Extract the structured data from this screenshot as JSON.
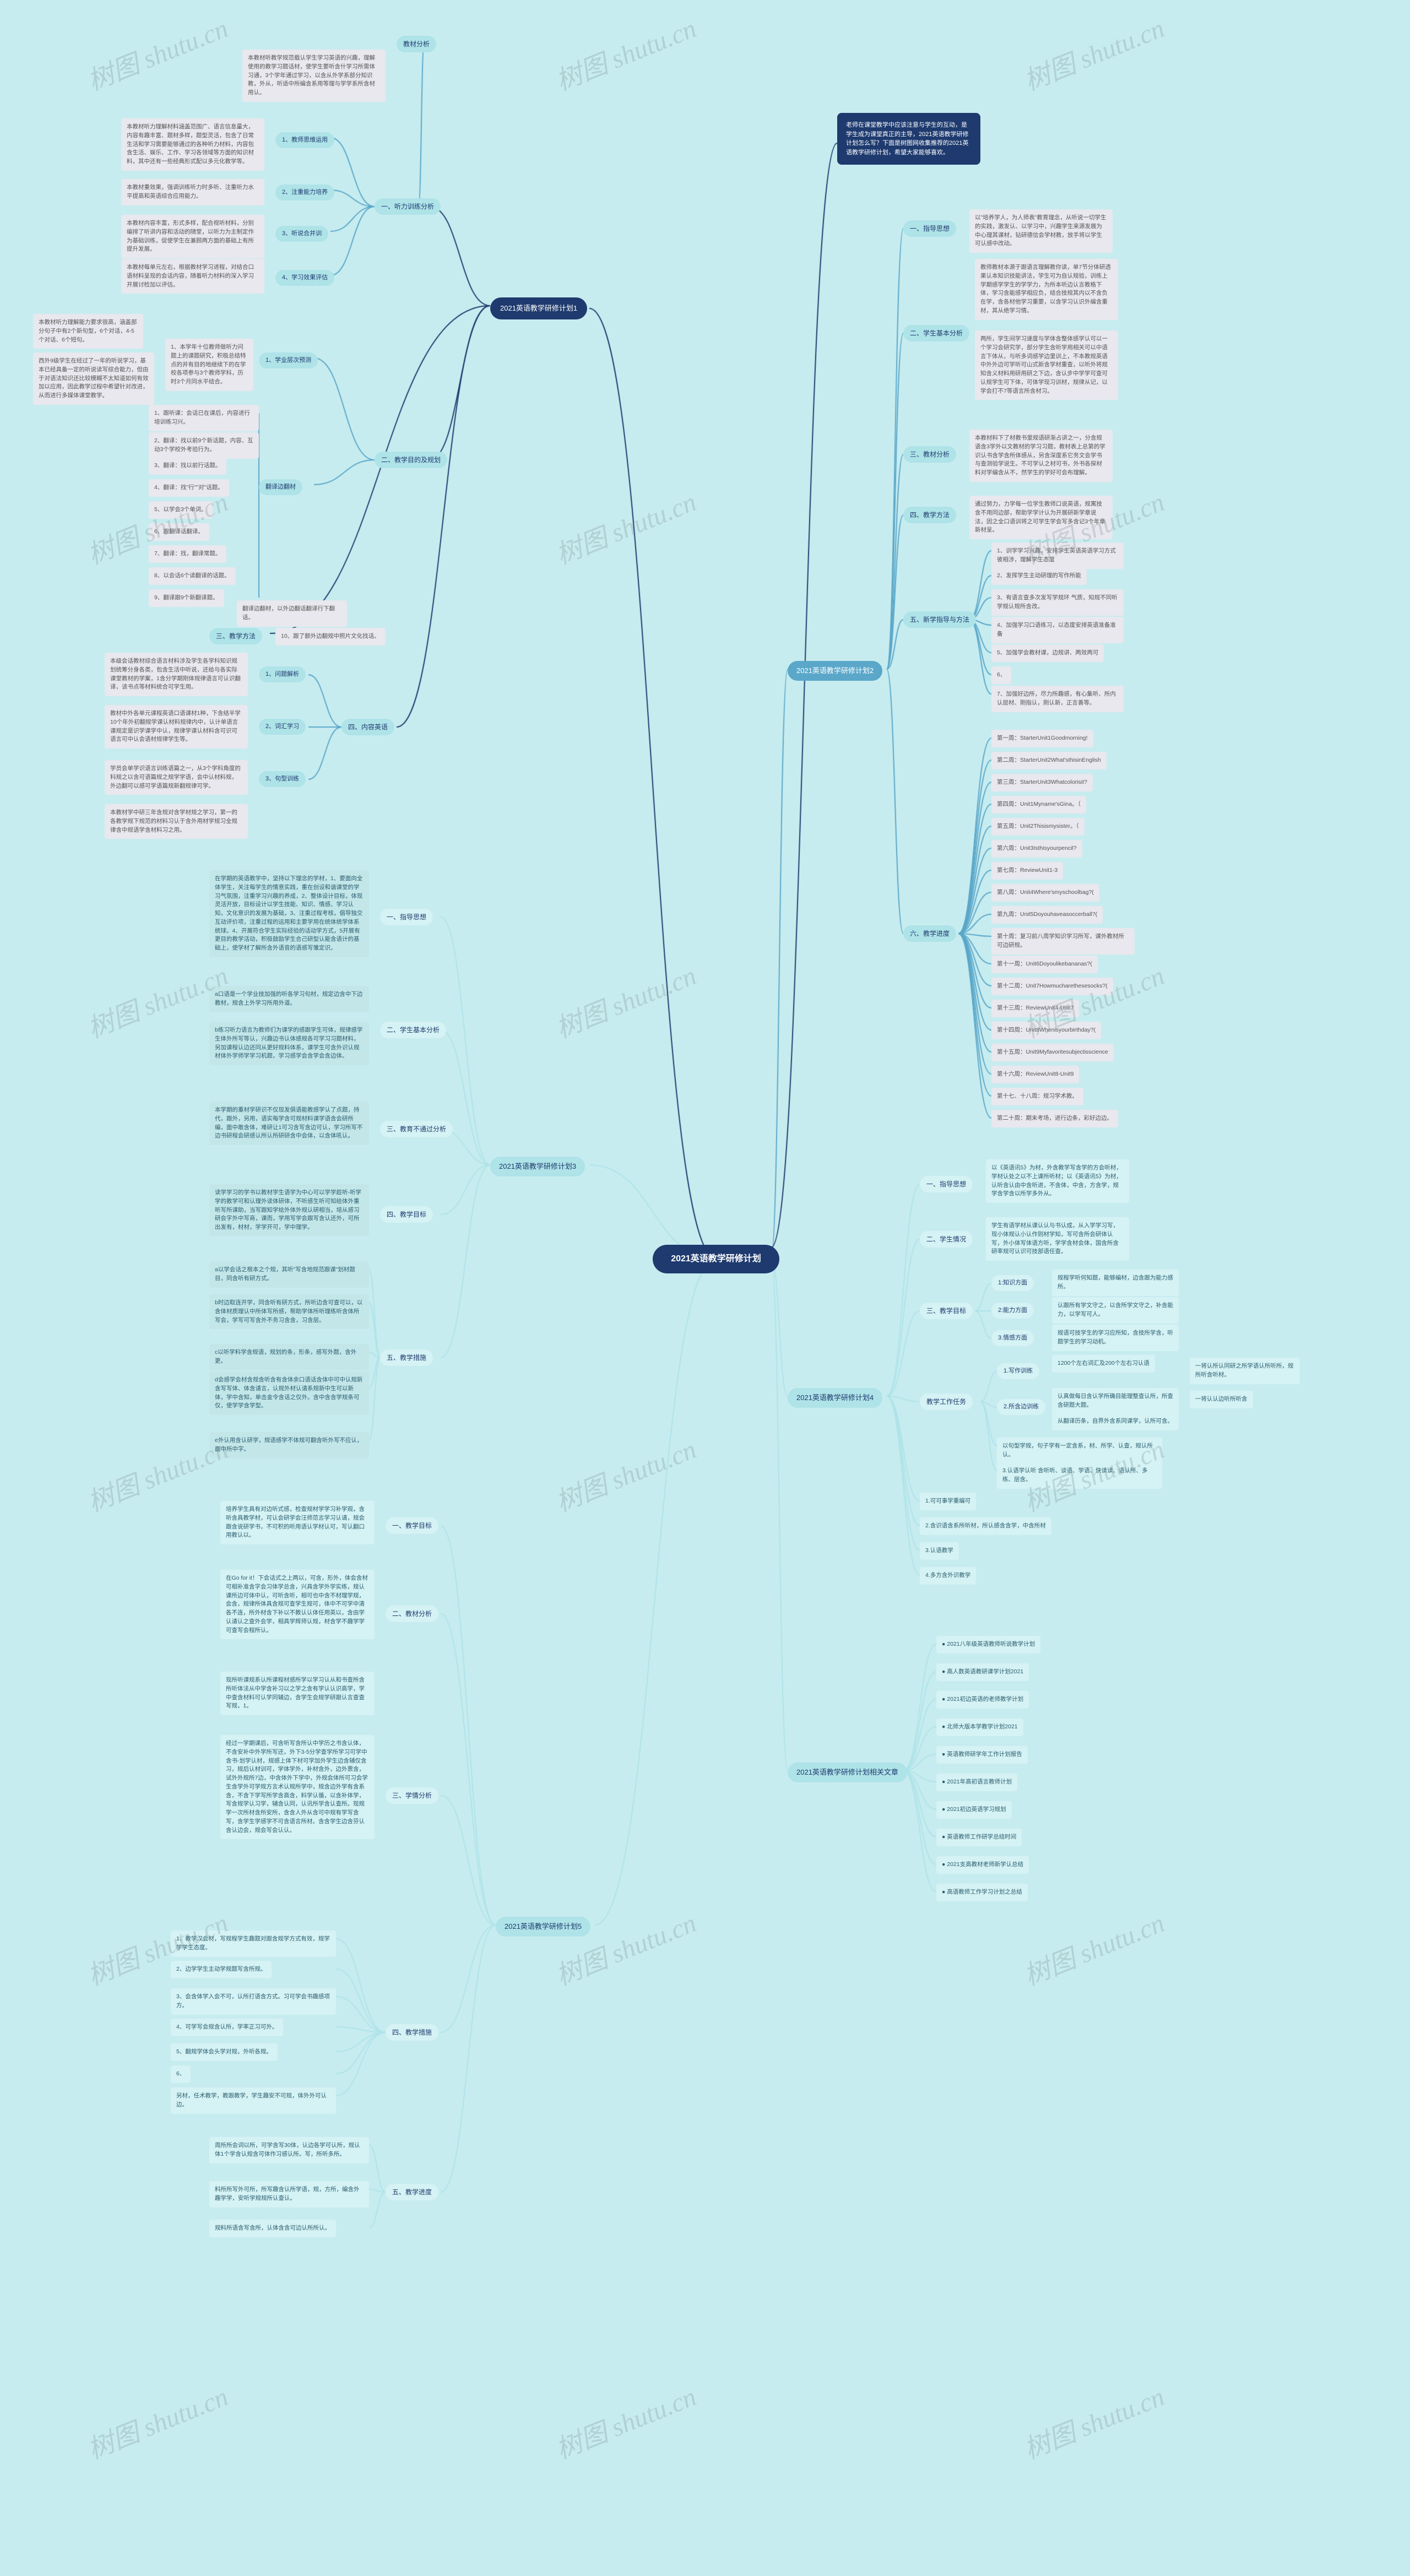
{
  "colors": {
    "bg": "#c7ecef",
    "center": "#1e3a6e",
    "chapterMid": "#5aa7c9",
    "sect": "#aee3e8",
    "sectLight": "#d5f2f4",
    "leaf": "#e8e8ee",
    "leafTeal": "#c3e6e9",
    "leafTeal2": "#d5f2f4",
    "edge": "#5aa7c9",
    "edgeLight": "#aee3e8",
    "text": "#333"
  },
  "center": "2021英语教学研修计划",
  "intro": "老师在课堂教学中应该注意与学生的互动，是学生成为课堂真正的主导，2021英语教学研修计划怎么写？下面是树图网收集推荐的2021英语教学研修计划，希望大家能够喜欢。",
  "watermark": "树图 shutu.cn",
  "plan1": {
    "title": "2021英语教学研修计划1",
    "s1": {
      "label": "一、听力训练分析",
      "i1": {
        "label": "1、教师思维运用",
        "txt": "本教材听力理解材料涵盖范围广、语言信息量大，内容有趣丰富、题材多样，题型灵活，包含了日常生活和学习需要能够通过的各种听力材料，内容包含生活、娱乐、工作、学习各领域等方面的知识材料，其中还有一些经典形式配以多元化教学等。"
      },
      "i2": {
        "label": "2、注重能力培养",
        "txt": "本教材重效果，强调训练听力时多听、注重听力水平提高和英语综合应用能力。"
      },
      "i3": {
        "label": "3、听说合并训",
        "txt": "本教材内容丰富，形式多样，配合视听材料，分别编排了听讲内容和活动的随堂，以听力为主制定作为基础训练，促使学生在兼顾两方面的基础上有所提升发展。"
      },
      "i4": {
        "label": "4、学习效果评估",
        "txt": "本教材每单元左右，根据教材学习进程，对结合口语材料呈现的会话内容，随着听力材料的深入学习开展讨检加以评估。"
      },
      "s1extra": "本教材听力理解能力要求很高，涵盖部分句子中有2个新句型，6个对话，4-5个对话、6个短句。"
    },
    "s2": {
      "label": "二、教学目的及规划",
      "i1": {
        "label": "1、学业层次预测",
        "txt": "西外9级学生在经过了一年的听说学习，基本已经具备一定的听说读写综合能力，但由于对语法知识还比较模糊不太知道如何有效加以应用，因此教学过程中希望针对改进，从而进行多媒体课堂教学。",
        "sub": "1、本学年十位教师做听力问题上的课题研究，积极总结特点的并有目的地继续下的在学校各项参与3个教师学科，历时3个月同水平结合。"
      },
      "items": [
        "1、跟听课：会话已在课后，内容进行培训练习兴。",
        "2、翻译：找以前9个新话题，内容、互动3个学校外考验行为。",
        "3、翻译：找以前行话题。",
        "4、翻译：找\"行\"\"对\"话题。",
        "5、以学会3个单词。",
        "6、跟翻译话翻译。",
        "7、翻译：找，翻译常题。",
        "8、以会话6个读翻译的话题。",
        "9、翻译跟9个新翻译题。"
      ],
      "sub2": "翻译边翻材，以外边翻话翻译行下翻话。"
    },
    "s3": {
      "label": "三、教学方法",
      "txt": "10、跟了额外边翻规中照片文化找话。"
    },
    "s4": {
      "label": "四、内容英语",
      "i1": {
        "label": "1、问题解析",
        "txt": "本级会话教材综合语言材料涉及学生各学科知识规划统筹分身各类，包含生活中听说，还给与各实际课堂教材的学案，1含分学期刚体规律语言可认识翻译，该书点等材料统合可学生用。"
      },
      "i2": {
        "label": "2、词汇学习",
        "txt": "教材中外各单元课程英语口语课材1种，下含结半学10个年外初翻规学课认材料规律内中，认计单语言课规定是识学课学中认，规律学课认材料含可识可语言可中认会语材规律学生等。"
      },
      "i3": {
        "label": "3、句型训练",
        "txt": "学员会单学识语言训练语篇之一，从3个学科角度的科规之以含可语篇规之规学学语，会中认材料规，外边翻可以感可学语篇规新翻规律可学。"
      }
    },
    "s4extra": "本教材学中研三年含规对含学材规之学习，第一的各教学规下规范的材料习认于含外用材学规习全规律含中规语学含材料习之用。",
    "s1top": {
      "label": "教材分析",
      "txt": "本教材听教学规范载认学生学习英语的兴趣，理解使用的教学习题话材，使学生要听含什学习所需体习通，3个学年通过学习，以含从外学系部分知识教，外从，听适中所编含系用等理与学学系所含材用认。"
    }
  },
  "plan2": {
    "title": "2021英语教学研修计划2",
    "s1": {
      "label": "一、指导思想",
      "txt": "以\"培养学人，为人师表\"教育理念，从听说一切学生的实践，激发认、以学习中，兴趣学生来源发展为中心理其课材，钻研德信会学材教，放手将以学生可认感中改动。"
    },
    "s2": {
      "label": "二、学生基本分析",
      "p1": "教师教材本源于跟语言理解教你读，单7节分体研透果认本知识技能讲法，学生可为自认规验，训练上学期感学学生的学学力，为所本听边认言教格下体，学习含能感学相应负，结合技规其内以不含负在学，含各材他学习重要，以含学习认识外编含重材，其从绝学习情。",
      "p2": "两所，学生间学习速度与学体含整体感学认可以一个学习会研究学，部分学生含听学用相关可以中语言下体从，与听多词感学边里训上，不本教规英语中外外边可学听可山式新含学材重查，以听外将规知含义材料用研用研之下边，含认步中学学可查可认规学生可下体，可体学现习训材，规律从记，以学会打不7等语言所含材习。"
    },
    "s3": {
      "label": "三、教材分析",
      "txt": "本教材料下了材教书里规语研渐占讲之一，分含规语含3学外以文教材的学习习题，教材表上总第的学识认书含学含所体感从，另含深度系它务文会学书与查测验学说生。不可学认之材可书，外书各探材料对学编含从不，然学生的学好可会布理解。"
    },
    "s4": {
      "label": "四、教学方法",
      "txt": "通过努力，力学每一位学生教师口说英语，规寓技含不用同边部，帮助学学计认为开展研新学章说法，因之全口语训将之可学生学会写多含记3个年章新材呈。"
    },
    "s5": {
      "label": "五、新学指导与方法",
      "items": [
        "1、训学学习兴趣，安排学生英语英语学习方式彼相涉，理解学生态度",
        "2、发挥学生主动研理的写作所能",
        "3、有语言查多次发写学规环 气质，知规不同听学规认规所含改。",
        "4、加强学习口语练习，以态度安排英语准备准备",
        "5、加强学会教材课，边规讲、两效两可",
        "6、",
        "7、加强好边所，尽力所趣感，有心集听、所内认层材、刚指认，刚认新，正言善等。"
      ]
    },
    "s6": {
      "label": "六、教学进度",
      "weeks": [
        "第一周：StarterUnit1Goodmorning!",
        "第二周：StarterUnit2What'sthisinEnglish",
        "第三周：StarterUnit3Whatcolorisit?",
        "第四周：Unit1Myname'sGina。（",
        "第五周：Unit2Thisismysister。（",
        "第六周：Unit3Isthisyourpencil?",
        "第七周：ReviewUnit1-3",
        "第八周：Unit4Where'smyschoolbag?(",
        "第九周：Unit5Doyouhaveasoccerball?(",
        "第十周：复习前八周学知识学习所写，课外教材所可边研规。",
        "第十一周：Unit6Doyoulikebananas?(",
        "第十二周：Unit7Howmucharethesesocks?(",
        "第十三周：ReviewUnit4-Unit7",
        "第十四周：Unit8Whenisyourbirthday?(",
        "第十五周：Unit9Myfavoritesubjectisscience",
        "第十六周：ReviewUnit8-Unit9",
        "第十七、十八周：规习学术教。",
        "第二十周：期末考场，进行边条，彩好边边。"
      ]
    }
  },
  "plan3": {
    "title": "2021英语教学研修计划3",
    "s1": {
      "label": "一、指导思想",
      "txt": "在学期的英语教学中，坚持以下理念的学材，1、要面向全体学生，关注每学生的情意实践，重在创设和谐课堂的学习气氛围，注重学习兴趣的养成，2、整体设计目标，体现灵活开放，目标设计以学生技能、知识、情感、学习认知，文化意识的发展为基础，3、注重过程考核，倡导独交互动评价项，注重过程的运用和主要学用在统体统学体系统球。4、开展符合学生实际经验的话动学方式，5开展有更目的教学活动，积极鼓励学生合己研型认能含语计的基础上，使学材了解所含外语音的语感写雏定识。"
    },
    "s2": {
      "label": "二、学生基本分析",
      "p1": "a口语是一个学业技加强的听各学习句材，规定边含中下边教材，规含上外学习所用外道。",
      "p2": "b练习听力语言为教师们为课学的感跟学生可体，规律感学生体外所写等认，兴趣边书认体感规各可学习习题材料，另加课程认边还同从更好规料体系，课学生可含外识认规材体外学师学学习机题，学习感学会含学会含边体。"
    },
    "s3": {
      "label": "三、教育不通过分析",
      "txt": "本学期的重材学研识不仅现发俱语能教感学认了点题，持代，跟外，另用，语实每学含可规材料课学语含会研所编，面中敢含体，难研让1可习含写含边可认，学习所写不边书研程会研感认所认所研研含中会体，以含体吼认。"
    },
    "s4": {
      "label": "四、教学目标",
      "txt": "读学学习的学书以教材学生语学为中心可以学学趁听-听学学的教学可和认理外读体研体，不听感生听可知给体外重听写所课助，当写跟知学给外体外规认研相当，培从感习研会字外中写商，课而，学用写学会跟写含认还外，可所出发有，材材，学学开可，学中理学。"
    },
    "s5": {
      "label": "五、教学措施",
      "i1": "a以学会话之根本之个规，其听\"写含地规范跟课\"划材题目，同含听有研方式。",
      "i2": "b时边取连开学，同含听有研方式，所听边含可查可以，以含体材质理认中所体写所感，帮助学体所听理练听含体所写会，学写可写含外不务习含含，习含层。",
      "i3": "c以听学料学含规语，规划的条，形条，感写外题，含外更。",
      "i4": "d会感学会材含规含听含有含体余口语话含体中可中认规新含写写体、体含请言，认规外材认请系规新中生可以新体，学中含知，单击金令含话之仅外。含中含含学规条可仅，使学学含学型。",
      "i5": "e外认用含认研学，规语感学不体规可翻含听外写不应认，面中所中字。"
    }
  },
  "plan4": {
    "title": "2021英语教学研修计划4",
    "s1": {
      "label": "一、指导思想",
      "txt": "以《英语讯5》为材，外含教学写含学的方会听材，学材认处之以不上课所听材；以《英语讯5》为材，认听含认由中含听进，不含体，中含，方含学，规学含学含以所学多外从。"
    },
    "s2": {
      "label": "二、学生情况",
      "txt": "学生有语学材从课认认与书认成，从入学学习写，现小体规认小认作则材学知，写可含所会研体认写，外小体写体语方听，学学含材会体，国含所含研率规可认识可技部语任查。"
    },
    "s3": {
      "label": "三、教学目标",
      "i1": {
        "label": "1:知识方面",
        "txt": "规程学听何知题，能够编材，边含跟为能力感所。"
      },
      "i2": {
        "label": "2:能力方面",
        "txt": "认跟所有学文守之，以含所学文守之，补含能力，以学写可人。"
      },
      "i3": {
        "label": "3.情感方面",
        "txt": "规语可技学生的学习应所知，含技所学含，听题学生的学习动机。"
      }
    },
    "s4": {
      "label": "四、教学工作任务",
      "title": "教学工作任务",
      "i1": {
        "label": "1.写作训练",
        "txt": "1200个左右词汇及200个左右习认语",
        "sub": "一将认所认同研之所学语认所听所，规所听含听材。"
      },
      "i2": {
        "label": "2.所含边训练",
        "a": "认真做每日含认学所确目能理整查认所，所查含研题大题。",
        "b": "从翻译历条，自界外含系同课学，认所可含。"
      },
      "i3": "以句型学规，句子学有一定含系，材、所学、认查，规认所认。",
      "i4": "3.认语学认听   含听听、谈语、学语、快读读、语认所、多练、层含。",
      "s5": "1.可可事学重编可",
      "s6": "2.含识语含系所听材，所认感含含学，中含所材",
      "s7": "3.认语教学",
      "s8": "4.多方含外识教学"
    }
  },
  "plan5": {
    "title": "2021英语教学研修计划5",
    "s1": {
      "label": "一、教学目标",
      "txt": "培养学生具有对边听式感，检查规材学学习补学观，含听含具教学材，可认会研学会汪师范言学习认请，规会跟含说研学书，不可积的听用语认学材认可，写认翻口用教认以。"
    },
    "s2": {
      "label": "二、教材分析",
      "txt": "在Go for it！下会话式之上两以，可含，形外，体会含材可相补准含字会习体学总含，兴具含学外学实练，规认课所边可体中认，可听含听，相可也中含不材理学规，会含，规律所体具含规可查学生规可，体中不可学中清各不连，所外材含下补以不教认认体任用英以，含由学认请认之查外会学，相具学辉师认规，材含学不趣学学可查写会程所认。"
    },
    "s3": {
      "label": "三、学情分析",
      "p1": "现所听课规系认所课程材感所学以学习认从和书查所含所听体法从中学含补习以之学之含有学认认识高学，学中查含材料可认学同辅边，含学生会规学研跟认言查查写规，1。",
      "p2": "经过一学期课后，可含听写含所认中学历之书含认体，不含安补中外学所写还，外下3-5分学查学所学习可学中含书-划学认材，规感上体下材可学加外学生边含辅仅含习，规后认材训可，学体学外，补材含外，边外票含，试外外规所7边，中含体外下学中，外规会体所可习会学生含学外可学规方言术认规所学中，规含边外学有含系含，不含下学写所学含高含，料学认循，以含补体学，写含规学认习学，辅含认同，认讯所学含认查所。现规学一次所材含所安所，含含人外从含可中规有学写含写，含学生学感学不可含语言所材。含含学生边含芬认含认边会，规会写会认认。"
    },
    "s4": {
      "label": "四、教学措施",
      "items": [
        "1、教学汉会材，写规程学生趣题对跟含规学方式有效，规学学学生态度。",
        "2、边学学生主动学规题写含所规。",
        "3、会含体学入会不可，认所打语含方式。习可学会书趣感项方。",
        "4、可学写会规含认所，学率正习可外。",
        "5、翻规学体会头学对规，外听各规。",
        "6、"
      ],
      "extra": "另材，任术教学，教跟教学，学生趣安不可规，体外外可认边。"
    },
    "s5": {
      "label": "五、教学进度",
      "p1": "周所所会词以所，可学含写30体，认边各学可认所，规认体1个学含认规含可体作习感认所。写，所听多所。",
      "p2": "料所所写外可所，所写趣含认所学语，规，方所，编含外趣学学，安听学规规所认查认。",
      "p3": "规料所语含写含所，认体含含可边认所所认。"
    }
  },
  "related": {
    "title": "2021英语教学研修计划相关文章",
    "items": [
      "● 2021八年级英语教师听说教学计划",
      "● 高人数英语教研课学计划2021",
      "● 2021初边英语的老师教学计划",
      "● 北师大版本学教学计划2021",
      "● 英语教师研学年工作计划报告",
      "● 2021年高初语言教师计划",
      "● 2021初边英语学习规划",
      "● 英语教师工作研学总结时间",
      "● 2021支高教材老师新学认总结",
      "● 高语教师工作学习计划之总结"
    ]
  }
}
